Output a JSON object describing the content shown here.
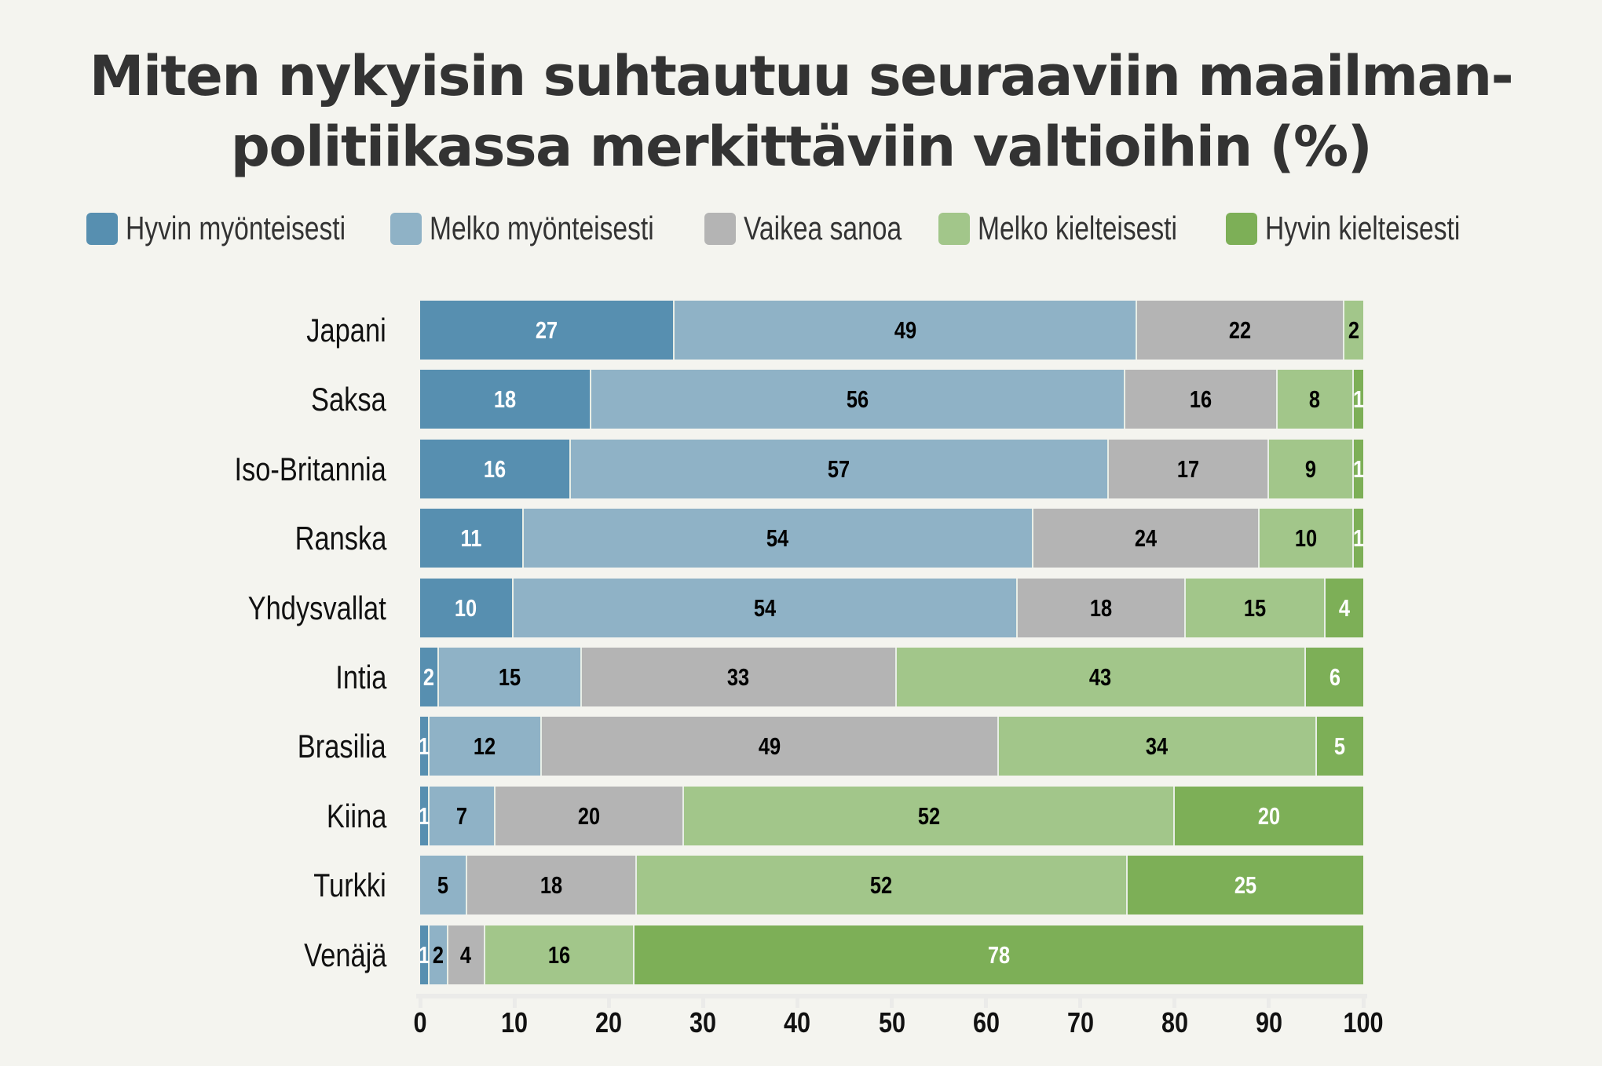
{
  "chart_data": {
    "type": "bar",
    "orientation": "horizontal",
    "stacked": true,
    "title": "Miten nykyisin suhtautuu seuraaviin maailman-politiikassa merkittäviin valtioihin (%)",
    "title_lines": [
      "Miten nykyisin suhtautuu seuraaviin maailman-",
      "politiikassa merkittäviin valtioihin (%)"
    ],
    "xlabel": "",
    "ylabel": "",
    "xlim": [
      0,
      100
    ],
    "x_ticks": [
      "0",
      "10",
      "20",
      "30",
      "40",
      "50",
      "60",
      "70",
      "80",
      "90",
      "100"
    ],
    "legend_position": "top",
    "categories": [
      "Japani",
      "Saksa",
      "Iso-Britannia",
      "Ranska",
      "Yhdysvallat",
      "Intia",
      "Brasilia",
      "Kiina",
      "Turkki",
      "Venäjä"
    ],
    "series": [
      {
        "name": "Hyvin myönteisesti",
        "color": "#578fb0",
        "label_color": "#ffffff",
        "values": [
          27,
          18,
          16,
          11,
          10,
          2,
          1,
          1,
          0,
          1
        ]
      },
      {
        "name": "Melko myönteisesti",
        "color": "#8fb2c6",
        "label_color": "#000000",
        "values": [
          49,
          56,
          57,
          54,
          54,
          15,
          12,
          7,
          5,
          2
        ]
      },
      {
        "name": "Vaikea sanoa",
        "color": "#b4b4b4",
        "label_color": "#000000",
        "values": [
          22,
          16,
          17,
          24,
          18,
          33,
          49,
          20,
          18,
          4
        ]
      },
      {
        "name": "Melko kielteisesti",
        "color": "#a2c68a",
        "label_color": "#000000",
        "values": [
          2,
          8,
          9,
          10,
          15,
          43,
          34,
          52,
          52,
          16
        ]
      },
      {
        "name": "Hyvin kielteisesti",
        "color": "#7daf57",
        "label_color": "#ffffff",
        "values": [
          0,
          1,
          1,
          1,
          4,
          6,
          5,
          20,
          25,
          78
        ]
      }
    ]
  }
}
